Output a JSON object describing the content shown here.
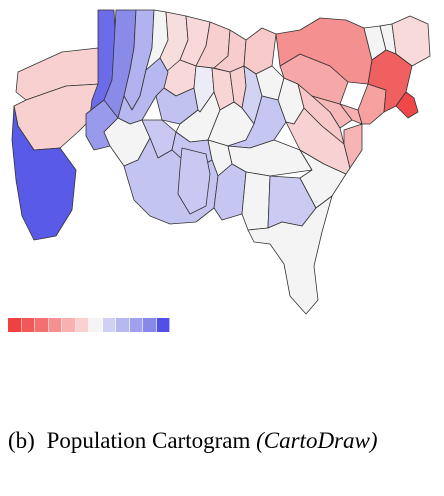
{
  "figure": {
    "caption": {
      "label": "(b)",
      "text": "Population Cartogram",
      "method": "(CartoDraw)"
    }
  },
  "palette": {
    "diverging": [
      "#f04040",
      "#f25858",
      "#f47070",
      "#f69090",
      "#f8b0b0",
      "#fad0d0",
      "#f4f4f4",
      "#d0d0f4",
      "#b8b8f0",
      "#a0a0ec",
      "#8888ea",
      "#5050e8"
    ]
  },
  "regions": [
    {
      "name": "washington",
      "color": "#6c6cea"
    },
    {
      "name": "oregon",
      "color": "#8a8ae8"
    },
    {
      "name": "idaho",
      "color": "#b2b2f0"
    },
    {
      "name": "montana",
      "color": "#f4f4f4"
    },
    {
      "name": "wyoming",
      "color": "#f6dede"
    },
    {
      "name": "north-dakota",
      "color": "#f8d8d8"
    },
    {
      "name": "south-dakota",
      "color": "#f8d8d8"
    },
    {
      "name": "minnesota",
      "color": "#f8cfcf"
    },
    {
      "name": "wisconsin",
      "color": "#f8cccc"
    },
    {
      "name": "michigan",
      "color": "#f8caca"
    },
    {
      "name": "nevada",
      "color": "#9a9aec"
    },
    {
      "name": "utah",
      "color": "#b8b8f0"
    },
    {
      "name": "colorado",
      "color": "#c2c2f0"
    },
    {
      "name": "nebraska",
      "color": "#ececf6"
    },
    {
      "name": "iowa",
      "color": "#f8d4d4"
    },
    {
      "name": "illinois",
      "color": "#f8d0d0"
    },
    {
      "name": "indiana",
      "color": "#d2d2f2"
    },
    {
      "name": "ohio",
      "color": "#f4f4f4"
    },
    {
      "name": "california",
      "color": "#5a5ae8"
    },
    {
      "name": "pacific-northwest-coast",
      "color": "#f8d0d0"
    },
    {
      "name": "west-inland",
      "color": "#f8d0d0"
    },
    {
      "name": "kansas",
      "color": "#f4f4f4"
    },
    {
      "name": "missouri",
      "color": "#f4f4f4"
    },
    {
      "name": "kentucky",
      "color": "#c6c6f2"
    },
    {
      "name": "west-virginia",
      "color": "#f4f4f4"
    },
    {
      "name": "arizona",
      "color": "#f4f4f4"
    },
    {
      "name": "new-mexico",
      "color": "#c8c8f2"
    },
    {
      "name": "oklahoma",
      "color": "#c6c6f2"
    },
    {
      "name": "arkansas",
      "color": "#f4f4f4"
    },
    {
      "name": "tennessee",
      "color": "#f4f4f4"
    },
    {
      "name": "texas",
      "color": "#c4c4f0"
    },
    {
      "name": "louisiana",
      "color": "#c8c8f2"
    },
    {
      "name": "mississippi",
      "color": "#c6c6f2"
    },
    {
      "name": "alabama",
      "color": "#f4f4f4"
    },
    {
      "name": "georgia",
      "color": "#cacaf2"
    },
    {
      "name": "south-carolina",
      "color": "#f4f4f4"
    },
    {
      "name": "florida",
      "color": "#f4f4f4"
    },
    {
      "name": "north-carolina",
      "color": "#f8d2d2"
    },
    {
      "name": "virginia",
      "color": "#f8c8c8"
    },
    {
      "name": "maryland",
      "color": "#f8b8b8"
    },
    {
      "name": "delaware",
      "color": "#f6b0b0"
    },
    {
      "name": "new-jersey",
      "color": "#f7b4b4"
    },
    {
      "name": "pennsylvania",
      "color": "#f6a8a8"
    },
    {
      "name": "new-york",
      "color": "#f49090"
    },
    {
      "name": "vermont",
      "color": "#f4f4f4"
    },
    {
      "name": "new-hampshire",
      "color": "#f4f4f4"
    },
    {
      "name": "maine",
      "color": "#f8dada"
    },
    {
      "name": "connecticut",
      "color": "#f6a0a0"
    },
    {
      "name": "massachusetts",
      "color": "#f06060"
    },
    {
      "name": "rhode-island",
      "color": "#f04848"
    }
  ]
}
